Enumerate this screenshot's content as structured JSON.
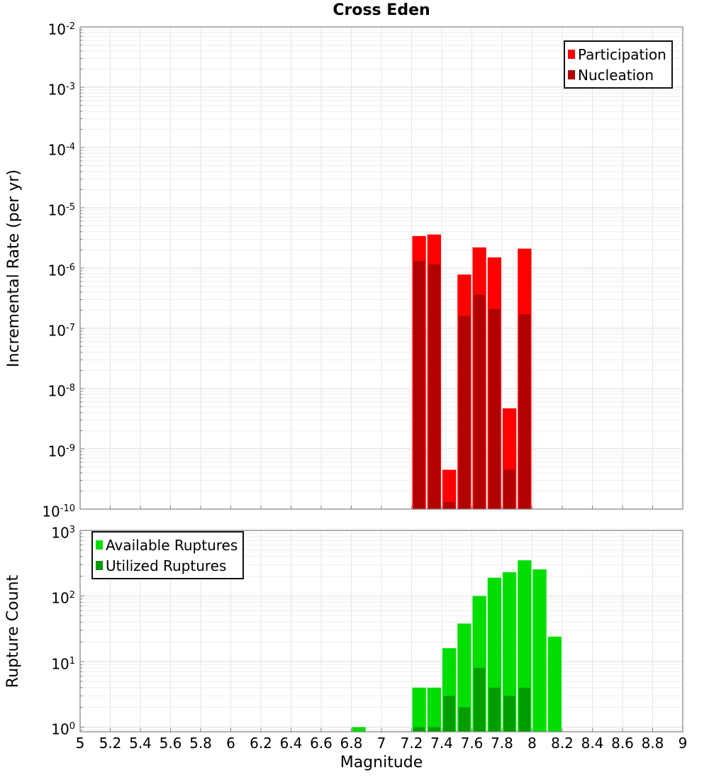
{
  "page": {
    "title": "Cross Eden",
    "xlabel": "Magnitude",
    "background": "#ffffff"
  },
  "axes": {
    "x": {
      "min": 5,
      "max": 9,
      "tick_values": [
        5,
        5.2,
        5.4,
        5.6,
        5.8,
        6,
        6.2,
        6.4,
        6.6,
        6.8,
        7,
        7.2,
        7.4,
        7.6,
        7.8,
        8,
        8.2,
        8.4,
        8.6,
        8.8,
        9
      ],
      "tick_labels": [
        "5",
        "5.2",
        "5.4",
        "5.6",
        "5.8",
        "6",
        "6.2",
        "6.4",
        "6.6",
        "6.8",
        "7",
        "7.2",
        "7.4",
        "7.6",
        "7.8",
        "8",
        "8.2",
        "8.4",
        "8.6",
        "8.8",
        "9"
      ]
    }
  },
  "style": {
    "frame_color": "#808080",
    "grid_major_color": "#dedede",
    "grid_minor_color": "#eeeeee",
    "grid_vertical_color": "#e4e4e4"
  },
  "chart_data": [
    {
      "id": "rate",
      "type": "bar",
      "title": "Cross Eden",
      "ylabel": "Incremental Rate (per yr)",
      "yscale": "log",
      "ylim": [
        1e-10,
        0.01
      ],
      "ytick_base": "10",
      "ytick_exponents": [
        "-2",
        "-3",
        "-4",
        "-5",
        "-6",
        "-7",
        "-8",
        "-9",
        "-10"
      ],
      "legend_position": "top-right",
      "grid": true,
      "bin_width": 0.1,
      "categories": [
        7.25,
        7.35,
        7.45,
        7.55,
        7.65,
        7.75,
        7.85,
        7.95
      ],
      "series": [
        {
          "name": "Participation",
          "color": "#ff0000",
          "values": [
            3.4e-06,
            3.6e-06,
            4.5e-10,
            7.8e-07,
            2.2e-06,
            1.5e-06,
            4.7e-09,
            2.1e-06
          ]
        },
        {
          "name": "Nucleation",
          "color": "#b00000",
          "values": [
            1.3e-06,
            1.15e-06,
            1.3e-10,
            1.6e-07,
            3.6e-07,
            2.1e-07,
            4.5e-10,
            1.7e-07
          ]
        }
      ]
    },
    {
      "id": "count",
      "type": "bar",
      "title": "",
      "ylabel": "Rupture Count",
      "yscale": "log",
      "ylim": [
        0.85,
        1000
      ],
      "ytick_base": "10",
      "ytick_exponents": [
        "3",
        "2",
        "1",
        "0"
      ],
      "legend_position": "top-left",
      "grid": true,
      "bin_width": 0.1,
      "categories": [
        6.85,
        7.25,
        7.35,
        7.45,
        7.55,
        7.65,
        7.75,
        7.85,
        7.95,
        8.05,
        8.15
      ],
      "series": [
        {
          "name": "Available Ruptures",
          "color": "#00dd00",
          "values": [
            1,
            4,
            4,
            16,
            38,
            100,
            190,
            230,
            350,
            255,
            24
          ]
        },
        {
          "name": "Utilized Ruptures",
          "color": "#009c00",
          "values": [
            null,
            1,
            1,
            3,
            2,
            8,
            4,
            3,
            4,
            null,
            null
          ]
        }
      ]
    }
  ]
}
